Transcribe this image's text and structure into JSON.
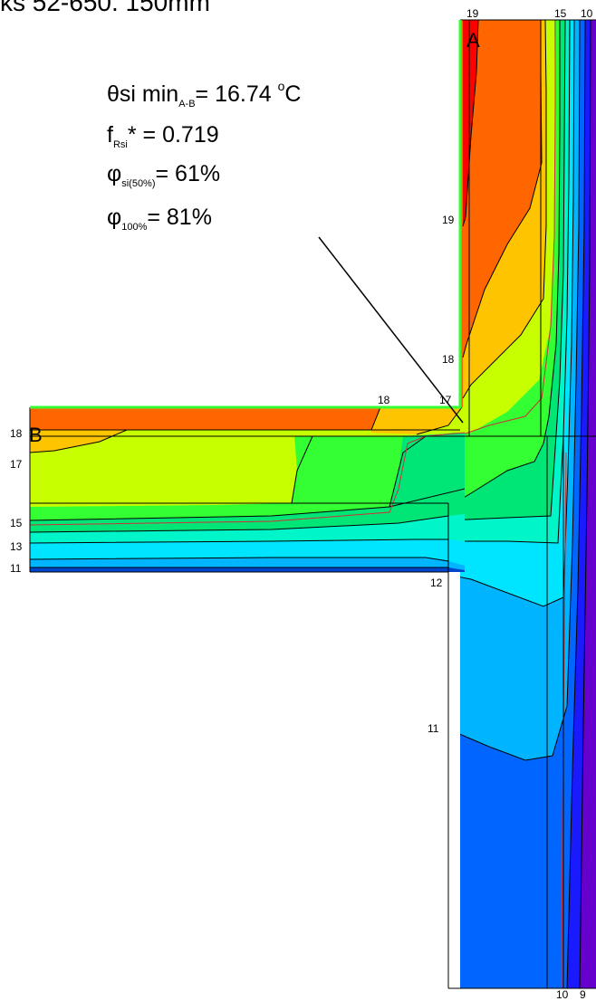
{
  "header_text": "ks 52-650. 150mm",
  "annotation": {
    "theta_prefix": "θsi min",
    "theta_sub": "A-B",
    "theta_value": "= 16.74",
    "theta_deg": "o",
    "theta_unit": "C",
    "f_prefix": "f",
    "f_sub": "Rsi",
    "f_value": "* = 0.719",
    "phi50_prefix": "φ",
    "phi50_sub": "si(50%)",
    "phi50_value": "= 61%",
    "phi100_prefix": "φ",
    "phi100_sub": "100%",
    "phi100_value": "= 81%"
  },
  "points": {
    "a": "A",
    "b": "B"
  },
  "isotherm_labels": {
    "top_19": "19",
    "top_15": "15",
    "top_10": "10",
    "v19": "19",
    "v18": "18",
    "h18": "18",
    "h17": "17",
    "left_18": "18",
    "left_17": "17",
    "left_15": "15",
    "left_13": "13",
    "left_11": "11",
    "slab_12": "12",
    "col_11": "11",
    "bottom_10": "10",
    "bottom_9": "9"
  },
  "colors": {
    "band_19_20": "#ff0000",
    "band_18_19": "#ff6600",
    "band_17_18": "#ffc400",
    "band_16_17": "#c8ff00",
    "band_15_16": "#33ff33",
    "band_14_15": "#00e676",
    "band_13_14": "#00f5c8",
    "band_12_13": "#00e5ff",
    "band_11_12": "#00b4ff",
    "band_10_11": "#0066ff",
    "band_9_10": "#1a1aff",
    "band_8_9": "#6600cc",
    "surface_line": "#33ff33",
    "critical_isotherm": "#cc3333"
  }
}
